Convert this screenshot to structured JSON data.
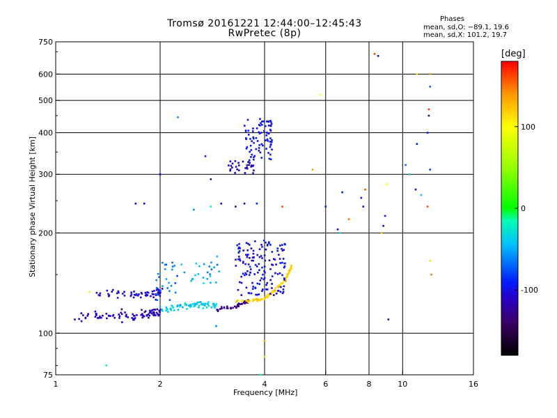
{
  "chart_data": {
    "type": "scatter",
    "title": "Tromsø 20161221 12:44:00–12:45:43",
    "subtitle": "RwPretec (8p)",
    "xlabel": "Frequency [MHz]",
    "ylabel": "Stationary phase Virtual Height [km]",
    "x_scale": "log",
    "y_scale": "log",
    "xlim": [
      1,
      16
    ],
    "ylim": [
      75,
      750
    ],
    "x_ticks": [
      1,
      2,
      4,
      6,
      8,
      10,
      16
    ],
    "y_ticks": [
      75,
      100,
      200,
      300,
      400,
      500,
      600,
      750
    ],
    "grid": true,
    "phases": {
      "title": "Phases",
      "o_mode": "mean, sd,O: −89.1, 19.6",
      "x_mode": "mean, sd,X: 101.2, 19.7"
    },
    "colorbar": {
      "title": "[deg]",
      "ticks": [
        100,
        0,
        -100
      ],
      "range": [
        -180,
        180
      ]
    },
    "point_groups": [
      {
        "type": "trace",
        "points": [
          [
            1.15,
            112
          ],
          [
            1.3,
            113
          ],
          [
            1.5,
            112
          ],
          [
            1.7,
            113
          ],
          [
            1.9,
            115
          ],
          [
            2.0,
            115
          ]
        ],
        "spread": [
          0.05,
          5
        ],
        "count": 90,
        "phase": -110,
        "phase_sd": 15
      },
      {
        "type": "trace",
        "points": [
          [
            1.35,
            133
          ],
          [
            1.6,
            130
          ],
          [
            1.9,
            130
          ],
          [
            2.0,
            133
          ]
        ],
        "spread": [
          0.06,
          6
        ],
        "count": 60,
        "phase": -105,
        "phase_sd": 15
      },
      {
        "type": "trace",
        "points": [
          [
            2.0,
            118
          ],
          [
            2.3,
            120
          ],
          [
            2.6,
            122
          ],
          [
            2.9,
            122
          ]
        ],
        "spread": [
          0.05,
          4
        ],
        "count": 70,
        "phase": -40,
        "phase_sd": 25
      },
      {
        "type": "trace",
        "points": [
          [
            2.9,
            118
          ],
          [
            3.3,
            120
          ],
          [
            3.6,
            125
          ]
        ],
        "spread": [
          0.04,
          3
        ],
        "count": 40,
        "phase": -130,
        "phase_sd": 20
      },
      {
        "type": "trace",
        "points": [
          [
            3.3,
            125
          ],
          [
            3.6,
            125
          ],
          [
            4.0,
            127
          ],
          [
            4.3,
            135
          ],
          [
            4.6,
            145
          ],
          [
            4.8,
            160
          ]
        ],
        "spread": [
          0.03,
          2
        ],
        "count": 80,
        "phase": 120,
        "phase_sd": 20
      },
      {
        "type": "cloud",
        "x": [
          3.3,
          4.6
        ],
        "y": [
          130,
          190
        ],
        "count": 150,
        "phase": -100,
        "phase_sd": 18
      },
      {
        "type": "cloud",
        "x": [
          2.3,
          3.0
        ],
        "y": [
          140,
          170
        ],
        "count": 25,
        "phase": -50,
        "phase_sd": 30
      },
      {
        "type": "cloud",
        "x": [
          1.95,
          2.25
        ],
        "y": [
          125,
          170
        ],
        "count": 25,
        "phase": -60,
        "phase_sd": 30
      },
      {
        "type": "cloud",
        "x": [
          3.05,
          3.8
        ],
        "y": [
          300,
          330
        ],
        "count": 30,
        "phase": -110,
        "phase_sd": 12
      },
      {
        "type": "cloud",
        "x": [
          3.5,
          4.2
        ],
        "y": [
          330,
          440
        ],
        "count": 80,
        "phase": -95,
        "phase_sd": 12
      },
      {
        "type": "scatter",
        "points": [
          [
            1.7,
            245,
            -110
          ],
          [
            1.8,
            245,
            -110
          ],
          [
            2.0,
            300,
            -110
          ],
          [
            2.25,
            445,
            -60
          ],
          [
            2.5,
            235,
            -60
          ],
          [
            2.8,
            240,
            -20
          ],
          [
            2.7,
            340,
            -90
          ],
          [
            2.8,
            290,
            -130
          ],
          [
            3.0,
            245,
            -110
          ],
          [
            3.3,
            240,
            -140
          ],
          [
            3.5,
            245,
            -120
          ],
          [
            3.8,
            245,
            -90
          ],
          [
            4.5,
            240,
            160
          ],
          [
            5.5,
            310,
            140
          ],
          [
            5.8,
            520,
            100
          ],
          [
            6.0,
            240,
            -90
          ],
          [
            6.5,
            205,
            -110
          ],
          [
            6.6,
            200,
            -30
          ],
          [
            6.7,
            265,
            -90
          ],
          [
            7.0,
            220,
            150
          ],
          [
            7.6,
            255,
            -100
          ],
          [
            7.7,
            240,
            -110
          ],
          [
            7.8,
            270,
            160
          ],
          [
            8.3,
            690,
            160
          ],
          [
            8.5,
            680,
            -130
          ],
          [
            8.7,
            200,
            120
          ],
          [
            8.8,
            210,
            -110
          ],
          [
            9.0,
            280,
            100
          ],
          [
            8.9,
            225,
            -100
          ],
          [
            9.1,
            110,
            -120
          ],
          [
            10.2,
            320,
            -70
          ],
          [
            10.5,
            300,
            -40
          ],
          [
            10.9,
            270,
            -100
          ],
          [
            11.0,
            600,
            110
          ],
          [
            11.0,
            370,
            -90
          ],
          [
            11.3,
            260,
            -40
          ],
          [
            11.8,
            240,
            160
          ],
          [
            11.8,
            400,
            -90
          ],
          [
            11.9,
            450,
            -130
          ],
          [
            11.9,
            470,
            170
          ],
          [
            12.0,
            550,
            -70
          ],
          [
            12.0,
            600,
            140
          ],
          [
            12.0,
            310,
            -80
          ],
          [
            12.1,
            150,
            150
          ],
          [
            12.0,
            165,
            110
          ],
          [
            1.4,
            80,
            -10
          ],
          [
            2.9,
            105,
            -60
          ],
          [
            4.0,
            85,
            110
          ],
          [
            3.9,
            75,
            -20
          ],
          [
            4.0,
            95,
            130
          ],
          [
            1.25,
            133,
            90
          ],
          [
            1.55,
            118,
            -140
          ]
        ]
      }
    ]
  }
}
